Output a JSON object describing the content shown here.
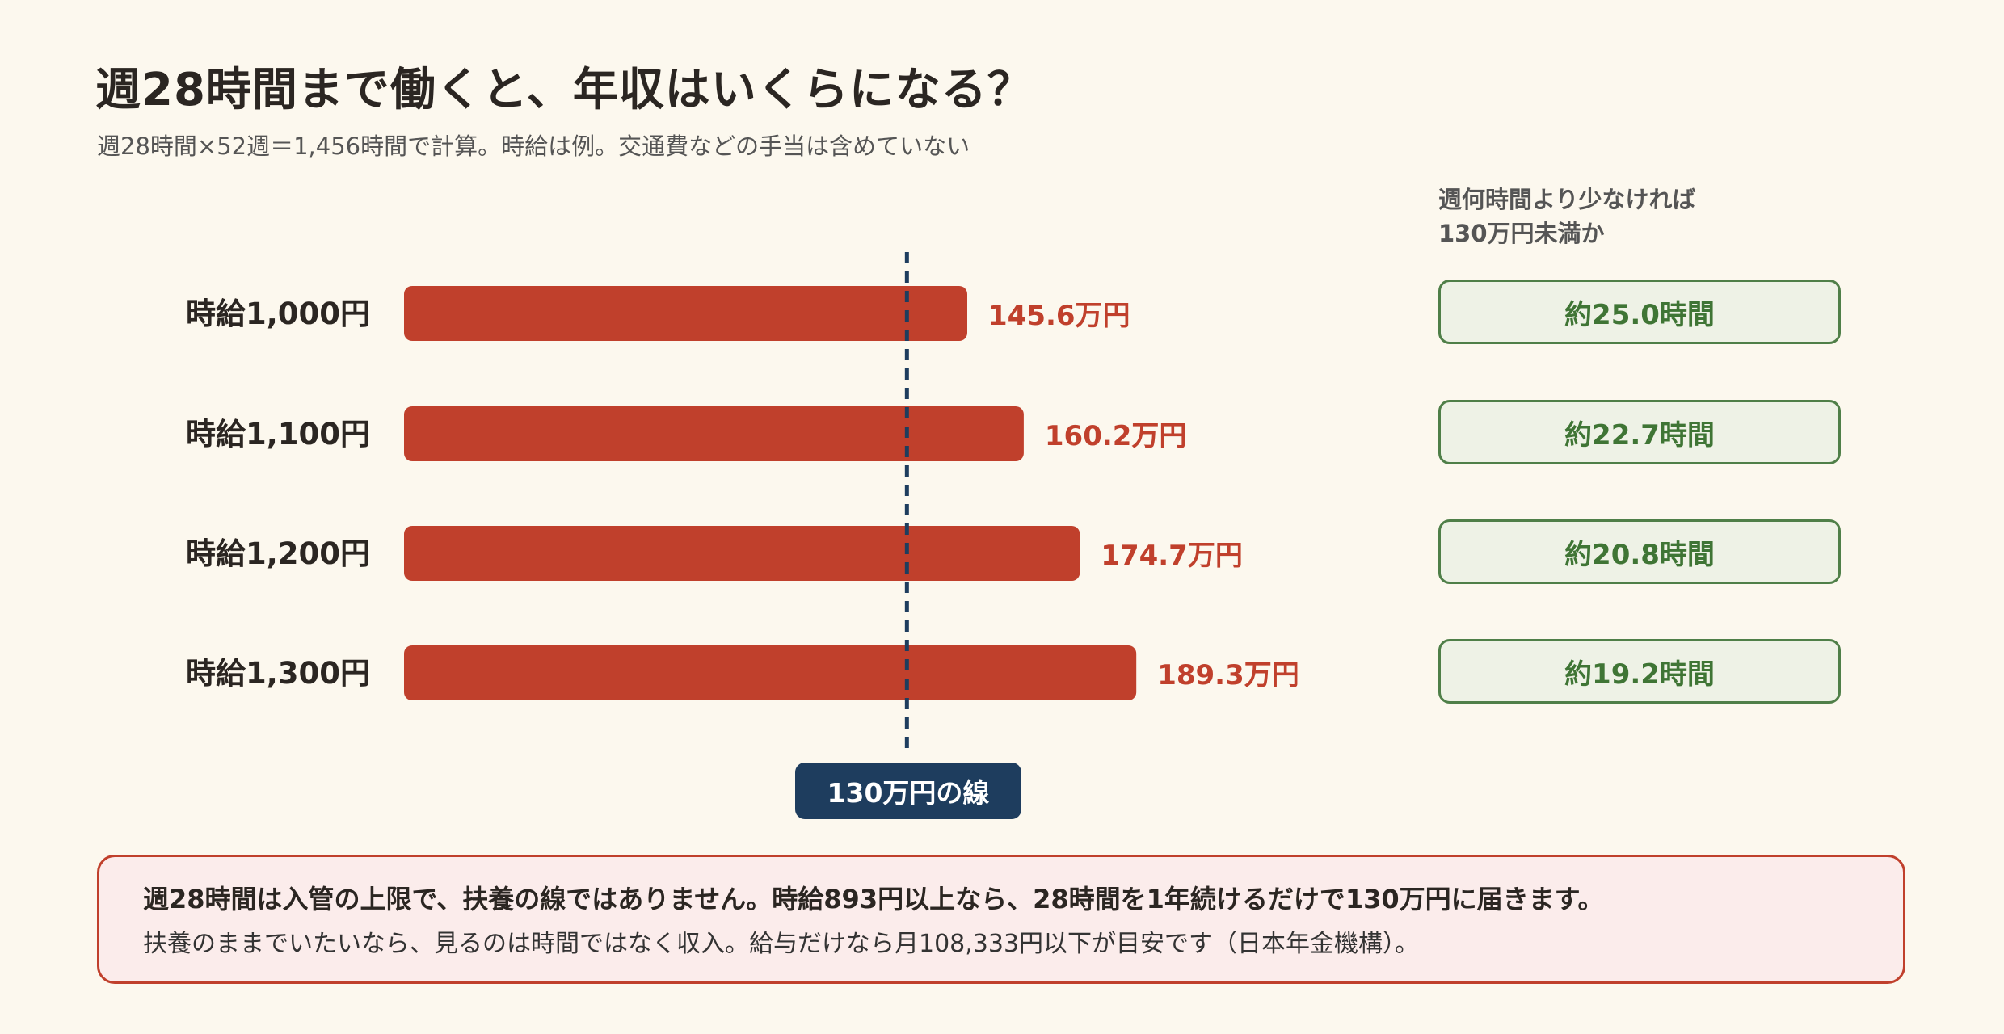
{
  "title": "週28時間まで働くと、年収はいくらになる？",
  "subtitle": "週28時間×52週＝1,456時間で計算。時給は例。交通費などの手当は含めていない",
  "side_header": {
    "line1": "週何時間より少なければ",
    "line2": "130万円未満か"
  },
  "colors": {
    "bar": "#c0402c",
    "threshold_line": "#1e3d5e",
    "hours_box_text": "#3f7535",
    "background": "#fcf8ee"
  },
  "chart_data": {
    "type": "bar",
    "orientation": "horizontal",
    "categories": [
      "時給1,000円",
      "時給1,100円",
      "時給1,200円",
      "時給1,300円"
    ],
    "values": [
      145.6,
      160.2,
      174.7,
      189.3
    ],
    "value_labels": [
      "145.6万円",
      "160.2万円",
      "174.7万円",
      "189.3万円"
    ],
    "unit": "万円",
    "threshold": {
      "value": 130,
      "label": "130万円の線"
    },
    "hours_below_threshold": [
      "約25.0時間",
      "約22.7時間",
      "約20.8時間",
      "約19.2時間"
    ]
  },
  "note": {
    "main": "週28時間は入管の上限で、扶養の線ではありません。時給893円以上なら、28時間を1年続けるだけで130万円に届きます。",
    "sub": "扶養のままでいたいなら、見るのは時間ではなく収入。給与だけなら月108,333円以下が目安です（日本年金機構）。"
  }
}
